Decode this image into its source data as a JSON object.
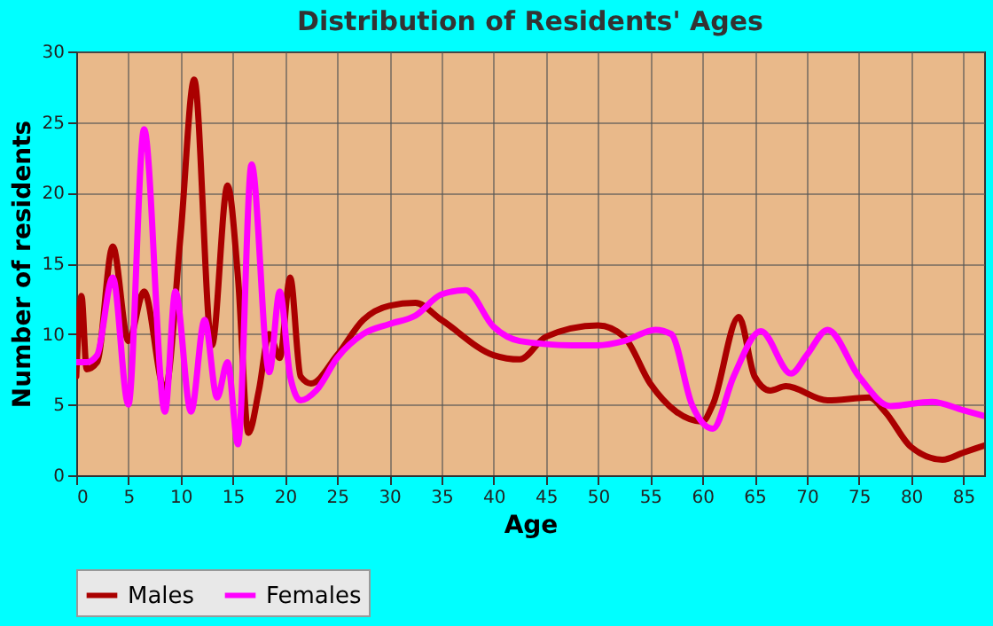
{
  "chart_data": {
    "type": "line",
    "title": "Distribution of Residents' Ages",
    "xlabel": "Age",
    "ylabel": "Number of residents",
    "xlim": [
      0,
      87
    ],
    "xticks": [
      0,
      5,
      10,
      15,
      20,
      25,
      30,
      35,
      40,
      45,
      50,
      55,
      60,
      65,
      70,
      75,
      80,
      85
    ],
    "ylim": [
      0,
      30
    ],
    "yticks": [
      0,
      5,
      10,
      15,
      20,
      25,
      30
    ],
    "grid": true,
    "legend": "bottom",
    "line_style": "solid",
    "series": [
      {
        "name": "Males",
        "color": "#aa0000",
        "x": [
          0,
          0.5,
          1,
          2,
          3.5,
          5,
          6.5,
          8.5,
          10,
          11.3,
          13,
          14.5,
          15.5,
          16.5,
          17.5,
          18.5,
          19.5,
          20.5,
          21.5,
          22.5,
          25,
          27.5,
          30,
          32.5,
          35,
          40,
          42.5,
          45,
          50,
          52.5,
          55,
          57.5,
          60,
          61,
          63.5,
          65,
          66.5,
          68,
          72,
          76,
          77.5,
          80,
          83,
          85,
          87
        ],
        "values": [
          7,
          12.7,
          7.5,
          8,
          16.2,
          9.5,
          13,
          6,
          17,
          28,
          9.2,
          20.5,
          14,
          3,
          6,
          10,
          8.3,
          14,
          7,
          6.5,
          8.5,
          11,
          12,
          12.2,
          11,
          8.5,
          8.2,
          9.8,
          10.6,
          9.8,
          6.5,
          4.5,
          3.8,
          5,
          11.2,
          7,
          6,
          6.3,
          5.3,
          5.5,
          4.5,
          2,
          1.1,
          1.6,
          2.1
        ]
      },
      {
        "name": "Females",
        "color": "#ff00ff",
        "x": [
          0,
          1,
          2,
          3.5,
          5,
          6.5,
          8.5,
          9.5,
          11,
          12.3,
          13.5,
          14.5,
          15.5,
          16.8,
          18.5,
          19.5,
          20.5,
          21.5,
          23,
          25,
          27.5,
          30,
          32.5,
          35,
          37.3,
          40,
          42.5,
          47.5,
          50,
          52.5,
          55.5,
          57,
          59,
          61,
          63,
          65.6,
          68.5,
          70,
          72,
          75,
          78,
          82,
          85,
          87
        ],
        "values": [
          8,
          8,
          8.5,
          14,
          5,
          24.5,
          4.5,
          13,
          4.5,
          11,
          5.5,
          8,
          2.2,
          22,
          7.3,
          13,
          7,
          5.3,
          6,
          8.3,
          10,
          10.7,
          11.3,
          12.8,
          13.1,
          10.5,
          9.5,
          9.2,
          9.2,
          9.5,
          10.3,
          10,
          5,
          3.3,
          7,
          10.2,
          7.2,
          8.5,
          10.3,
          7,
          4.9,
          5.2,
          4.6,
          4.2
        ]
      }
    ]
  }
}
